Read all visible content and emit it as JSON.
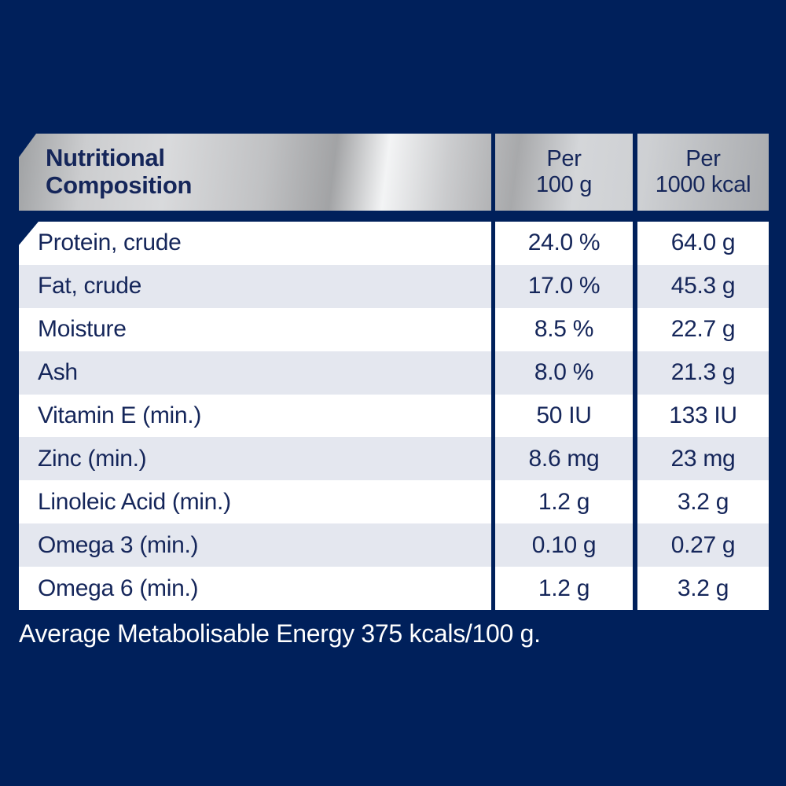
{
  "colors": {
    "navy_background": "#00205B",
    "text_navy": "#15265A",
    "row_alternate": "#E4E7EF",
    "row_white": "#FFFFFF",
    "header_silver": "#C8C9CB"
  },
  "table": {
    "header": {
      "title": "Nutritional Composition",
      "columns": [
        {
          "line1": "Per",
          "line2": "100 g"
        },
        {
          "line1": "Per",
          "line2": "1000 kcal"
        }
      ]
    },
    "rows": [
      {
        "label": "Protein, crude",
        "per_100g": "24.0 %",
        "per_1000kcal": "64.0 g"
      },
      {
        "label": "Fat, crude",
        "per_100g": "17.0 %",
        "per_1000kcal": "45.3 g"
      },
      {
        "label": "Moisture",
        "per_100g": "8.5 %",
        "per_1000kcal": "22.7 g"
      },
      {
        "label": "Ash",
        "per_100g": "8.0 %",
        "per_1000kcal": "21.3 g"
      },
      {
        "label": "Vitamin E (min.)",
        "per_100g": "50 IU",
        "per_1000kcal": "133 IU"
      },
      {
        "label": "Zinc (min.)",
        "per_100g": "8.6 mg",
        "per_1000kcal": "23 mg"
      },
      {
        "label": "Linoleic Acid (min.)",
        "per_100g": "1.2 g",
        "per_1000kcal": "3.2 g"
      },
      {
        "label": "Omega 3 (min.)",
        "per_100g": "0.10 g",
        "per_1000kcal": "0.27 g"
      },
      {
        "label": "Omega 6 (min.)",
        "per_100g": "1.2 g",
        "per_1000kcal": "3.2 g"
      }
    ]
  },
  "footer": {
    "text": "Average Metabolisable Energy 375 kcals/100 g."
  }
}
